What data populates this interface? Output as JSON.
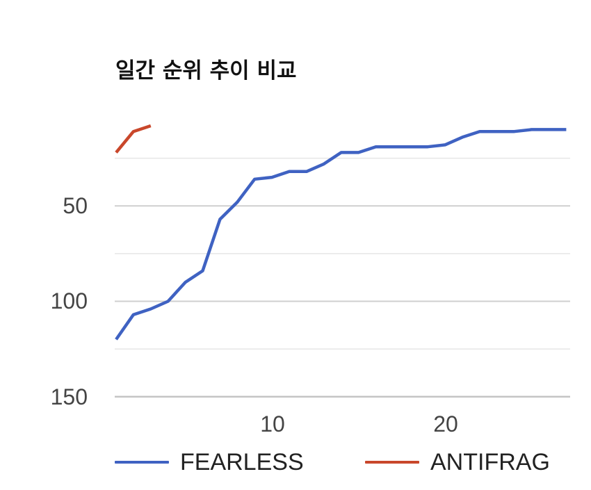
{
  "chart_data": {
    "type": "line",
    "title": "일간 순위 추이 비교",
    "xlabel": "",
    "ylabel": "",
    "x": [
      1,
      2,
      3,
      4,
      5,
      6,
      7,
      8,
      9,
      10,
      11,
      12,
      13,
      14,
      15,
      16,
      17,
      18,
      19,
      20,
      21,
      22,
      23,
      24,
      25,
      26,
      27
    ],
    "x_ticks": [
      10,
      20
    ],
    "y_ticks": [
      50,
      100,
      150
    ],
    "y_minor_gridlines": [
      25,
      75,
      125
    ],
    "ylim": [
      0,
      150
    ],
    "y_inverted": true,
    "grid": true,
    "legend_position": "bottom",
    "series": [
      {
        "name": "FEARLESS",
        "color": "#3f62c2",
        "values": [
          120,
          107,
          104,
          100,
          90,
          84,
          57,
          48,
          36,
          35,
          32,
          32,
          28,
          22,
          22,
          19,
          19,
          19,
          19,
          18,
          14,
          11,
          11,
          11,
          10,
          10,
          10
        ]
      },
      {
        "name": "ANTIFRAGILE",
        "color": "#c9472b",
        "values": [
          22,
          11,
          8
        ]
      }
    ]
  },
  "title": "일간 순위 추이 비교",
  "axis": {
    "y_labels": [
      "50",
      "100",
      "150"
    ],
    "x_labels": [
      "10",
      "20"
    ]
  },
  "legend": {
    "items": [
      {
        "label": "FEARLESS",
        "color": "#3f62c2"
      },
      {
        "label": "ANTIFRAG",
        "color": "#c9472b"
      }
    ]
  }
}
